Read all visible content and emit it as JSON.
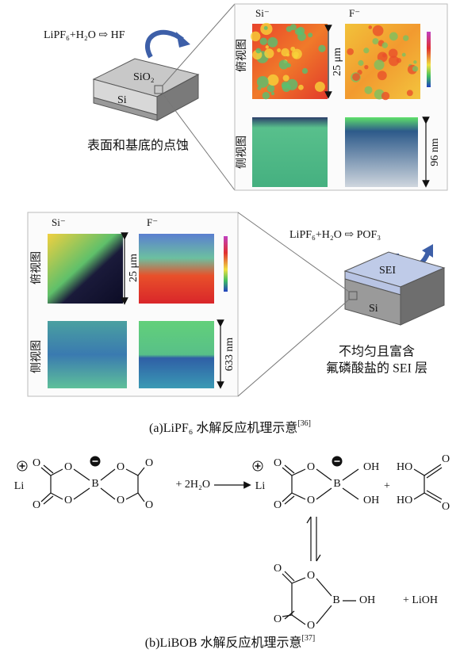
{
  "panel_a": {
    "top": {
      "reaction": "LiPF₆+H₂O ⇨ HF",
      "layer_top": "SiO₂",
      "layer_bottom": "Si",
      "description": "表面和基底的点蚀",
      "map_labels": [
        "Si⁻",
        "F⁻"
      ],
      "top_view": "俯视图",
      "side_view": "侧视图",
      "scale_xy": "25 μm",
      "scale_z": "96 nm"
    },
    "bottom": {
      "reaction": "LiPF₆+H₂O ⇨ POF₃",
      "layer_top": "SEI",
      "layer_bottom": "Si",
      "description": [
        "不均匀且富含",
        "氟磷酸盐的 SEI 层"
      ],
      "map_labels": [
        "Si⁻",
        "F⁻"
      ],
      "top_view": "俯视图",
      "side_view": "侧视图",
      "scale_xy": "25 μm",
      "scale_z": "633 nm"
    },
    "caption": "(a)LiPF₆ 水解反应机理示意",
    "caption_ref": "[36]"
  },
  "panel_b": {
    "reactant": {
      "cation": "Li",
      "atoms": [
        "O",
        "O",
        "O",
        "O",
        "B",
        "O",
        "O",
        "O",
        "O"
      ]
    },
    "reagent": "+ 2H₂O",
    "product": {
      "cation": "Li",
      "atoms": [
        "O",
        "O",
        "O",
        "O",
        "B",
        "OH",
        "OH"
      ]
    },
    "plus": "+",
    "oxalic_acid": [
      "HO",
      "HO",
      "O",
      "O"
    ],
    "byproduct": {
      "atoms": [
        "O",
        "O",
        "O",
        "O",
        "B",
        "OH"
      ],
      "extra": "+ LiOH"
    },
    "caption": "(b)LiBOB 水解反应机理示意",
    "caption_ref": "[37]"
  }
}
